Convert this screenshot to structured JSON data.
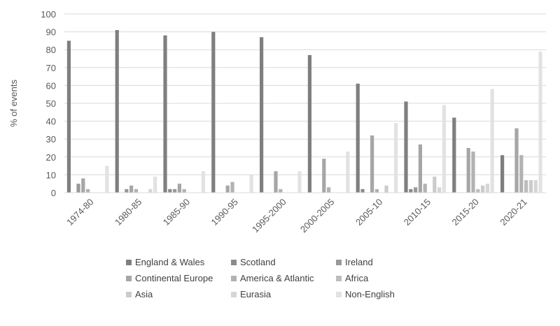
{
  "chart_data": {
    "type": "bar",
    "title": "",
    "xlabel": "",
    "ylabel": "% of events",
    "ylim": [
      0,
      100
    ],
    "yticks": [
      0,
      10,
      20,
      30,
      40,
      50,
      60,
      70,
      80,
      90,
      100
    ],
    "grid": true,
    "legend_position": "bottom",
    "categories": [
      "1974-80",
      "1980-85",
      "1985-90",
      "1990-95",
      "1995-2000",
      "2000-2005",
      "2005-10",
      "2010-15",
      "2015-20",
      "2020-21"
    ],
    "series": [
      {
        "name": "England & Wales",
        "color": "#7f7f7f",
        "values": [
          85,
          91,
          88,
          90,
          87,
          77,
          61,
          51,
          42,
          21
        ]
      },
      {
        "name": "Scotland",
        "color": "#8a8a8a",
        "values": [
          0,
          0,
          2,
          0,
          0,
          0,
          2,
          2,
          0,
          0
        ]
      },
      {
        "name": "Ireland",
        "color": "#999999",
        "values": [
          5,
          2,
          2,
          0,
          0,
          0,
          0,
          3,
          0,
          0
        ]
      },
      {
        "name": "Continental Europe",
        "color": "#a6a6a6",
        "values": [
          8,
          4,
          5,
          4,
          12,
          19,
          32,
          27,
          25,
          36
        ]
      },
      {
        "name": "America & Atlantic",
        "color": "#b2b2b2",
        "values": [
          2,
          2,
          2,
          6,
          2,
          3,
          2,
          5,
          23,
          21
        ]
      },
      {
        "name": "Africa",
        "color": "#bdbdbd",
        "values": [
          0,
          0,
          0,
          0,
          0,
          0,
          0,
          0,
          2,
          7
        ]
      },
      {
        "name": "Asia",
        "color": "#cbcbcb",
        "values": [
          0,
          0,
          0,
          0,
          0,
          0,
          4,
          9,
          4,
          7
        ]
      },
      {
        "name": "Eurasia",
        "color": "#d6d6d6",
        "values": [
          0,
          2,
          0,
          0,
          0,
          0,
          0,
          3,
          5,
          7
        ]
      },
      {
        "name": "Non-English",
        "color": "#e2e2e2",
        "values": [
          15,
          9,
          12,
          10,
          12,
          23,
          39,
          49,
          58,
          79
        ]
      }
    ]
  }
}
